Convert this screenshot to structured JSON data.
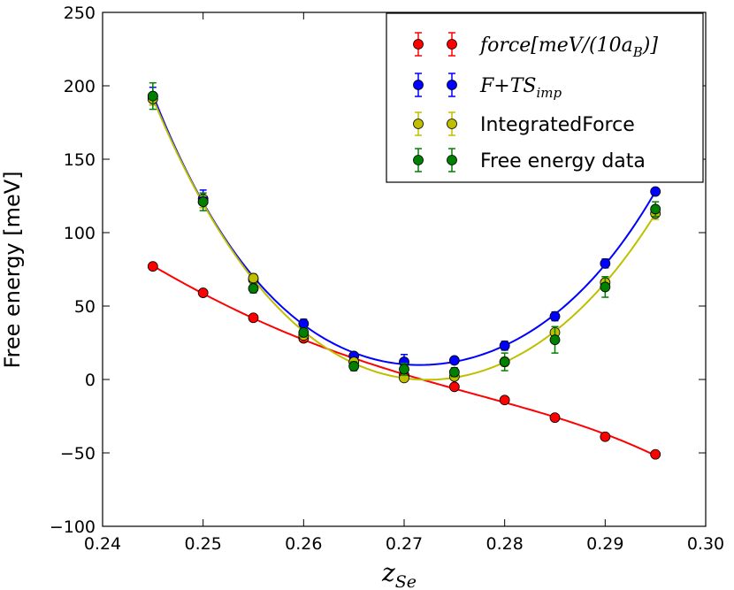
{
  "chart_data": {
    "type": "scatter",
    "title": "",
    "xlabel": {
      "base": "z",
      "sub": "Se"
    },
    "ylabel": "Free energy [meV]",
    "xlim": [
      0.24,
      0.3
    ],
    "ylim": [
      -100,
      250
    ],
    "x_ticks": [
      0.24,
      0.25,
      0.26,
      0.27,
      0.28,
      0.29,
      0.3
    ],
    "x_tick_labels": [
      "0.24",
      "0.25",
      "0.26",
      "0.27",
      "0.28",
      "0.29",
      "0.30"
    ],
    "y_ticks": [
      -100,
      -50,
      0,
      50,
      100,
      150,
      200,
      250
    ],
    "y_tick_labels": [
      "−100",
      "−50",
      "0",
      "50",
      "100",
      "150",
      "200",
      "250"
    ],
    "legend_position": "top-right",
    "x": [
      0.245,
      0.25,
      0.255,
      0.26,
      0.265,
      0.27,
      0.275,
      0.28,
      0.285,
      0.29,
      0.295
    ],
    "series": [
      {
        "name": "force[meV/(10a_B)]",
        "legend_label": {
          "pre": "force[meV/(10a",
          "sub": "B",
          "post": ")]"
        },
        "color": "#ff0000",
        "values": [
          77,
          59,
          42,
          28,
          12,
          3,
          -5,
          -14,
          -26,
          -39,
          -51
        ],
        "errors": [
          0,
          0,
          0,
          0,
          0,
          0,
          0,
          0,
          0,
          0,
          0
        ],
        "fit_curve": true
      },
      {
        "name": "F+TS_imp",
        "legend_label": {
          "pre": "F+TS",
          "sub": "imp",
          "post": ""
        },
        "color": "#0000ff",
        "values": [
          193,
          123,
          68,
          38,
          16,
          12,
          13,
          23,
          43,
          79,
          128
        ],
        "errors": [
          6,
          6,
          3,
          3,
          2,
          5,
          2,
          3,
          3,
          3,
          2
        ],
        "fit_curve": true
      },
      {
        "name": "IntegratedForce",
        "legend_label": {
          "pre": "IntegratedForce",
          "sub": "",
          "post": ""
        },
        "color": "#bfbf00",
        "values": [
          191,
          121,
          69,
          30,
          12,
          1,
          2,
          12,
          32,
          66,
          113
        ],
        "errors": [
          4,
          4,
          3,
          3,
          2,
          2,
          2,
          3,
          4,
          4,
          4
        ],
        "fit_curve": true
      },
      {
        "name": "Free energy data",
        "legend_label": {
          "pre": "Free energy data",
          "sub": "",
          "post": ""
        },
        "color": "#008000",
        "values": [
          193,
          121,
          62,
          32,
          9,
          7,
          5,
          12,
          27,
          63,
          116
        ],
        "errors": [
          9,
          6,
          3,
          3,
          3,
          4,
          3,
          6,
          9,
          7,
          5
        ],
        "fit_curve": false
      }
    ]
  }
}
